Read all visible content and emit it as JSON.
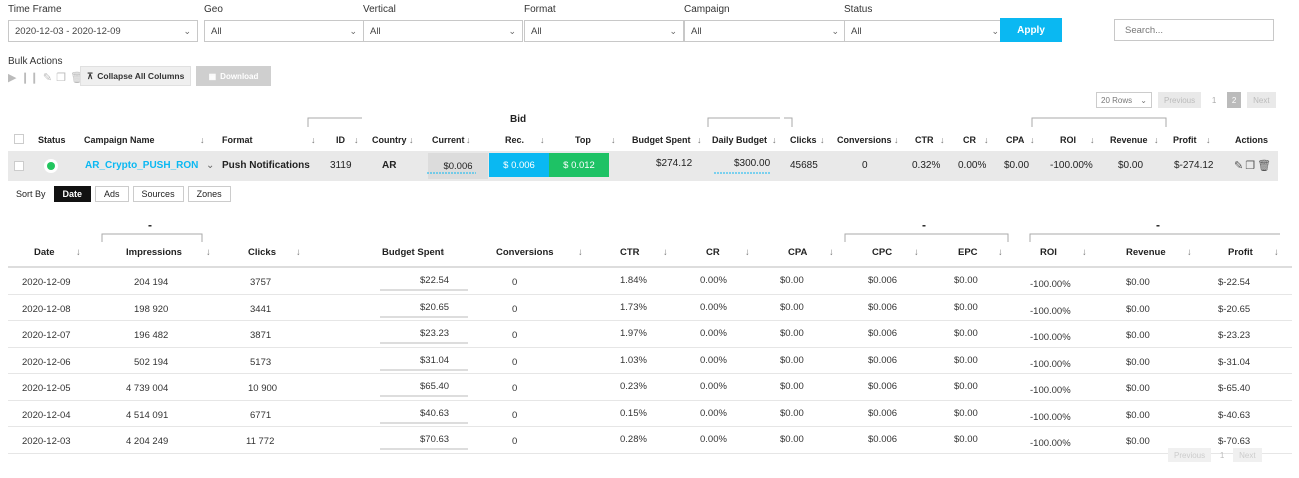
{
  "filters": {
    "time_frame": {
      "label": "Time Frame",
      "value": "2020-12-03 - 2020-12-09"
    },
    "geo": {
      "label": "Geo",
      "value": "All"
    },
    "vertical": {
      "label": "Vertical",
      "value": "All"
    },
    "format": {
      "label": "Format",
      "value": "All"
    },
    "campaign": {
      "label": "Campaign",
      "value": "All"
    },
    "status": {
      "label": "Status",
      "value": "All"
    },
    "apply_label": "Apply",
    "search_placeholder": "Search..."
  },
  "bulk": {
    "label": "Bulk Actions",
    "collapse_label": "Collapse All Columns",
    "download_label": "Download"
  },
  "pager_top": {
    "rows": "20 Rows",
    "previous": "Previous",
    "page1": "1",
    "page2": "2",
    "next": "Next"
  },
  "main_header": {
    "bid_group": "Bid",
    "status": "Status",
    "campaign_name": "Campaign Name",
    "format": "Format",
    "id": "ID",
    "country": "Country",
    "current": "Current",
    "rec": "Rec.",
    "top": "Top",
    "budget_spent": "Budget Spent",
    "daily_budget": "Daily Budget",
    "clicks": "Clicks",
    "conversions": "Conversions",
    "ctr": "CTR",
    "cr": "CR",
    "cpa": "CPA",
    "roi": "ROI",
    "revenue": "Revenue",
    "profit": "Profit",
    "actions": "Actions"
  },
  "campaign": {
    "name": "AR_Crypto_PUSH_RON",
    "format": "Push Notifications",
    "id": "3119",
    "country": "AR",
    "bid_current": "$0.006",
    "bid_rec": "$ 0.006",
    "bid_top": "$ 0.012",
    "budget_spent": "$274.12",
    "daily_budget": "$300.00",
    "clicks": "45685",
    "conversions": "0",
    "ctr": "0.32%",
    "cr": "0.00%",
    "cpa": "$0.00",
    "roi": "-100.00%",
    "revenue": "$0.00",
    "profit": "$-274.12",
    "status_color": "#22c55e"
  },
  "sort_by": {
    "label": "Sort By",
    "options": [
      "Date",
      "Ads",
      "Sources",
      "Zones"
    ],
    "active": "Date"
  },
  "sub_header": {
    "date": "Date",
    "impressions": "Impressions",
    "clicks": "Clicks",
    "budget_spent": "Budget Spent",
    "conversions": "Conversions",
    "ctr": "CTR",
    "cr": "CR",
    "cpa": "CPA",
    "cpc": "CPC",
    "epc": "EPC",
    "roi": "ROI",
    "revenue": "Revenue",
    "profit": "Profit",
    "dash": "-"
  },
  "sub_rows": [
    {
      "date": "2020-12-09",
      "impressions": "204 194",
      "clicks": "3757",
      "budget": "$22.54",
      "conv": "0",
      "ctr": "1.84%",
      "cr": "0.00%",
      "cpa": "$0.00",
      "cpc": "$0.006",
      "epc": "$0.00",
      "roi": "-100.00%",
      "revenue": "$0.00",
      "profit": "$-22.54"
    },
    {
      "date": "2020-12-08",
      "impressions": "198 920",
      "clicks": "3441",
      "budget": "$20.65",
      "conv": "0",
      "ctr": "1.73%",
      "cr": "0.00%",
      "cpa": "$0.00",
      "cpc": "$0.006",
      "epc": "$0.00",
      "roi": "-100.00%",
      "revenue": "$0.00",
      "profit": "$-20.65"
    },
    {
      "date": "2020-12-07",
      "impressions": "196 482",
      "clicks": "3871",
      "budget": "$23.23",
      "conv": "0",
      "ctr": "1.97%",
      "cr": "0.00%",
      "cpa": "$0.00",
      "cpc": "$0.006",
      "epc": "$0.00",
      "roi": "-100.00%",
      "revenue": "$0.00",
      "profit": "$-23.23"
    },
    {
      "date": "2020-12-06",
      "impressions": "502 194",
      "clicks": "5173",
      "budget": "$31.04",
      "conv": "0",
      "ctr": "1.03%",
      "cr": "0.00%",
      "cpa": "$0.00",
      "cpc": "$0.006",
      "epc": "$0.00",
      "roi": "-100.00%",
      "revenue": "$0.00",
      "profit": "$-31.04"
    },
    {
      "date": "2020-12-05",
      "impressions": "4 739 004",
      "clicks": "10 900",
      "budget": "$65.40",
      "conv": "0",
      "ctr": "0.23%",
      "cr": "0.00%",
      "cpa": "$0.00",
      "cpc": "$0.006",
      "epc": "$0.00",
      "roi": "-100.00%",
      "revenue": "$0.00",
      "profit": "$-65.40"
    },
    {
      "date": "2020-12-04",
      "impressions": "4 514 091",
      "clicks": "6771",
      "budget": "$40.63",
      "conv": "0",
      "ctr": "0.15%",
      "cr": "0.00%",
      "cpa": "$0.00",
      "cpc": "$0.006",
      "epc": "$0.00",
      "roi": "-100.00%",
      "revenue": "$0.00",
      "profit": "$-40.63"
    },
    {
      "date": "2020-12-03",
      "impressions": "4 204 249",
      "clicks": "11 772",
      "budget": "$70.63",
      "conv": "0",
      "ctr": "0.28%",
      "cr": "0.00%",
      "cpa": "$0.00",
      "cpc": "$0.006",
      "epc": "$0.00",
      "roi": "-100.00%",
      "revenue": "$0.00",
      "profit": "$-70.63"
    }
  ],
  "pager_bottom": {
    "previous": "Previous",
    "page1": "1",
    "next": "Next"
  }
}
